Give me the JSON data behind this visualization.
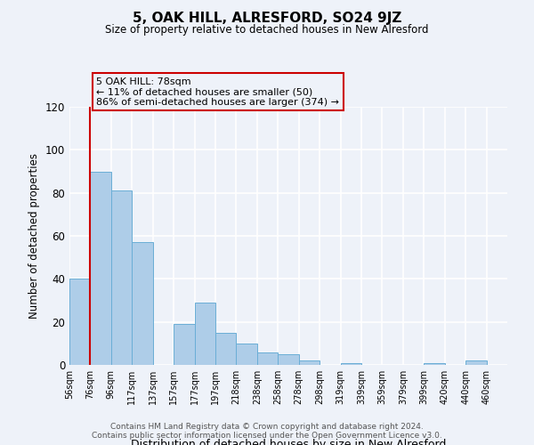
{
  "title": "5, OAK HILL, ALRESFORD, SO24 9JZ",
  "subtitle": "Size of property relative to detached houses in New Alresford",
  "xlabel": "Distribution of detached houses by size in New Alresford",
  "ylabel": "Number of detached properties",
  "bin_labels": [
    "56sqm",
    "76sqm",
    "96sqm",
    "117sqm",
    "137sqm",
    "157sqm",
    "177sqm",
    "197sqm",
    "218sqm",
    "238sqm",
    "258sqm",
    "278sqm",
    "298sqm",
    "319sqm",
    "339sqm",
    "359sqm",
    "379sqm",
    "399sqm",
    "420sqm",
    "440sqm",
    "460sqm"
  ],
  "bar_values": [
    40,
    90,
    81,
    57,
    0,
    19,
    29,
    15,
    10,
    6,
    5,
    2,
    0,
    1,
    0,
    0,
    0,
    1,
    0,
    2,
    0
  ],
  "bar_color": "#aecde8",
  "bar_edge_color": "#6aaed6",
  "vline_x": 1,
  "vline_color": "#cc0000",
  "annotation_text": "5 OAK HILL: 78sqm\n← 11% of detached houses are smaller (50)\n86% of semi-detached houses are larger (374) →",
  "annotation_box_edge_color": "#cc0000",
  "ylim": [
    0,
    120
  ],
  "yticks": [
    0,
    20,
    40,
    60,
    80,
    100,
    120
  ],
  "footnote1": "Contains HM Land Registry data © Crown copyright and database right 2024.",
  "footnote2": "Contains public sector information licensed under the Open Government Licence v3.0.",
  "background_color": "#eef2f9",
  "grid_color": "#ffffff"
}
